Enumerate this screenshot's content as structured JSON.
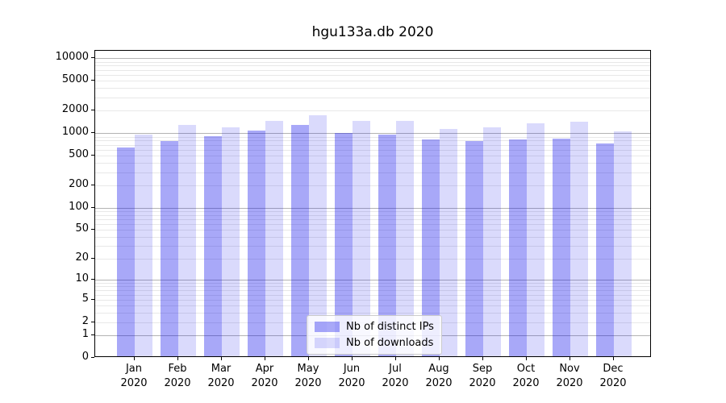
{
  "title": "hgu133a.db 2020",
  "chart_data": {
    "type": "bar",
    "title": "hgu133a.db 2020",
    "categories": [
      "Jan",
      "Feb",
      "Mar",
      "Apr",
      "May",
      "Jun",
      "Jul",
      "Aug",
      "Sep",
      "Oct",
      "Nov",
      "Dec"
    ],
    "year_label": "2020",
    "series": [
      {
        "name": "Nb of distinct IPs",
        "color": "rgba(0,0,235,0.34)",
        "values": [
          620,
          750,
          870,
          1030,
          1230,
          960,
          910,
          790,
          740,
          790,
          810,
          700
        ]
      },
      {
        "name": "Nb of downloads",
        "color": "rgba(0,0,235,0.145)",
        "values": [
          920,
          1240,
          1140,
          1390,
          1650,
          1390,
          1390,
          1090,
          1150,
          1290,
          1360,
          1010
        ]
      }
    ],
    "yscale": "log1p",
    "yticks": [
      0,
      1,
      2,
      5,
      10,
      20,
      50,
      100,
      200,
      500,
      1000,
      2000,
      5000,
      10000
    ],
    "ylim": [
      0,
      12650
    ],
    "grid": true,
    "legend_position": "lower center"
  },
  "colors": {
    "grid_major": "#b3b3b3",
    "grid_minor": "#e8e8e8",
    "spine": "#000000",
    "background": "#ffffff"
  }
}
